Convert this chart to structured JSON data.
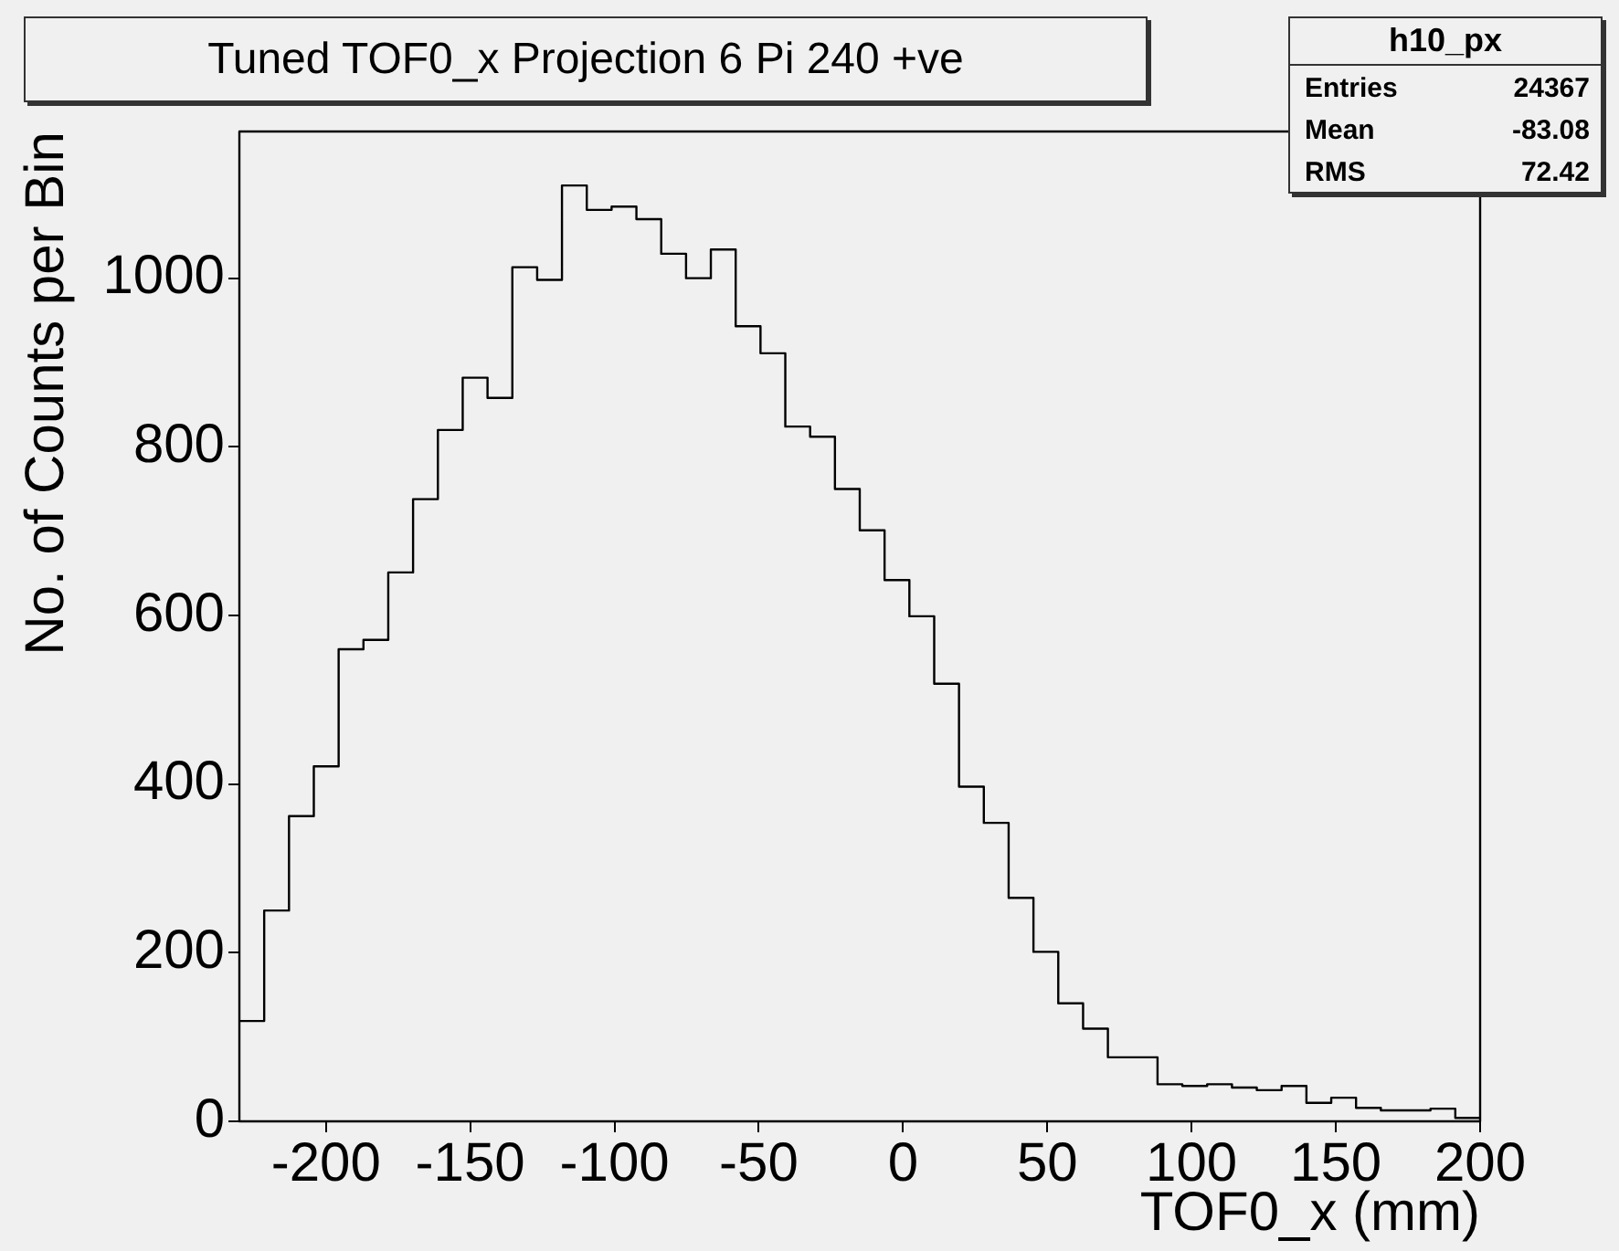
{
  "chart_data": {
    "type": "histogram",
    "title": "Tuned TOF0_x Projection 6 Pi 240 +ve",
    "xlabel": "TOF0_x (mm)",
    "ylabel": "No. of Counts per Bin",
    "annotations": [
      "h10_px",
      "Entries",
      "24367",
      "Mean",
      "-83.08",
      "RMS",
      "72.42"
    ],
    "bins": [
      -230,
      -221.4,
      -212.8,
      -204.2,
      -195.6,
      -187,
      -178.4,
      -169.8,
      -161.2,
      -152.6,
      -144,
      -135.4,
      -126.8,
      -118.2,
      -109.6,
      -101,
      -92.4,
      -83.8,
      -75.2,
      -66.6,
      -58,
      -49.4,
      -40.8,
      -32.2,
      -23.6,
      -15,
      -6.4,
      2.2,
      10.8,
      19.4,
      28,
      36.6,
      45.2,
      53.8,
      62.4,
      71,
      79.6,
      88.2,
      96.8,
      105.4,
      114,
      122.6,
      131.2,
      139.8,
      148.4,
      157,
      165.6,
      174.2,
      182.8,
      191.4,
      200
    ],
    "values": [
      119,
      250,
      362,
      421,
      560,
      571,
      651,
      738,
      820,
      882,
      858,
      1013,
      998,
      1110,
      1081,
      1085,
      1070,
      1029,
      1000,
      1034,
      943,
      911,
      824,
      812,
      750,
      701,
      642,
      599,
      519,
      397,
      354,
      265,
      201,
      140,
      110,
      76,
      76,
      44,
      42,
      44,
      40,
      37,
      42,
      22,
      28,
      16,
      13,
      13,
      15,
      4
    ],
    "color": "#000000",
    "xlim": [
      -230,
      200
    ],
    "ylim": [
      0,
      1174
    ],
    "xticks": [
      -200,
      -150,
      -100,
      -50,
      0,
      50,
      100,
      150,
      200
    ],
    "yticks": [
      0,
      200,
      400,
      600,
      800,
      1000
    ],
    "grid": false,
    "legend": false
  }
}
